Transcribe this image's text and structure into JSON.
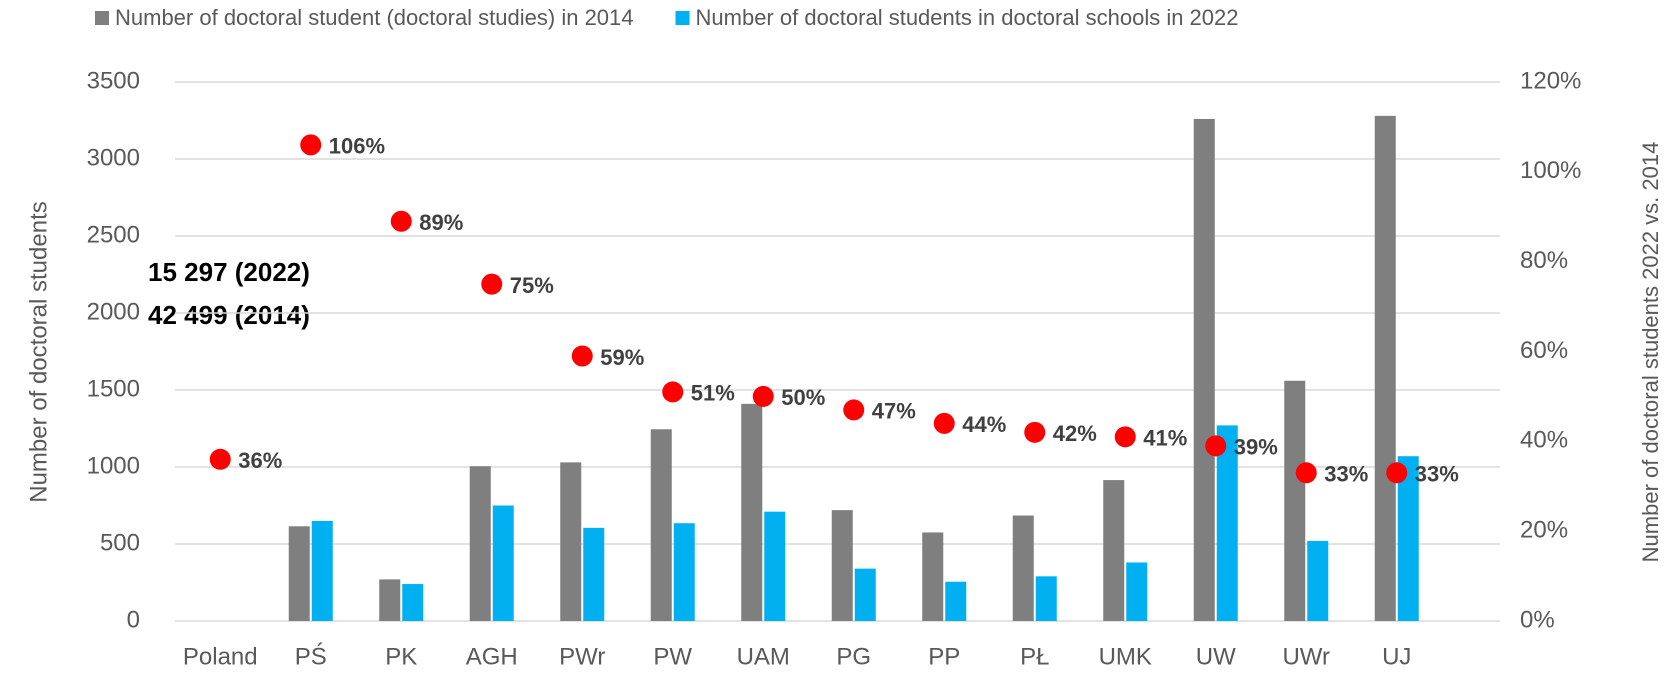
{
  "chart_data": {
    "type": "bar",
    "categories": [
      "Poland",
      "PŚ",
      "PK",
      "AGH",
      "PWr",
      "PW",
      "UAM",
      "PG",
      "PP",
      "PŁ",
      "UMK",
      "UW",
      "UWr",
      "UJ"
    ],
    "series": [
      {
        "name": "Number of doctoral student (doctoral studies) in 2014",
        "color": "#7f7f7f",
        "type": "bar",
        "values": [
          null,
          615,
          270,
          1005,
          1030,
          1245,
          1410,
          720,
          575,
          685,
          915,
          3260,
          1560,
          3280
        ]
      },
      {
        "name": "Number of doctoral students in doctoral schools in 2022",
        "color": "#00b0f0",
        "type": "bar",
        "values": [
          null,
          650,
          240,
          750,
          605,
          635,
          710,
          340,
          255,
          290,
          380,
          1270,
          520,
          1070
        ]
      },
      {
        "color": "#ff0000",
        "type": "scatter",
        "axis": "y2",
        "values": [
          36,
          106,
          89,
          75,
          59,
          51,
          50,
          47,
          44,
          42,
          41,
          39,
          33,
          33
        ],
        "value_labels": [
          "36%",
          "106%",
          "89%",
          "75%",
          "59%",
          "51%",
          "50%",
          "47%",
          "44%",
          "42%",
          "41%",
          "39%",
          "33%",
          "33%"
        ]
      }
    ],
    "ylim": [
      0,
      3500
    ],
    "yticks": [
      0,
      500,
      1000,
      1500,
      2000,
      2500,
      3000,
      3500
    ],
    "y2lim": [
      0,
      120
    ],
    "y2ticks": [
      {
        "value": 0,
        "label": "0%"
      },
      {
        "value": 20,
        "label": "20%"
      },
      {
        "value": 40,
        "label": "40%"
      },
      {
        "value": 60,
        "label": "60%"
      },
      {
        "value": 80,
        "label": "80%"
      },
      {
        "value": 100,
        "label": "100%"
      },
      {
        "value": 120,
        "label": "120%"
      }
    ],
    "ylabel": "Number of doctoral students",
    "y2label": "Number of doctoral students 2022 vs. 2014",
    "annotations": [
      "15 297 (2022)",
      "42 499 (2014)"
    ],
    "grid": true,
    "legend": "top"
  }
}
